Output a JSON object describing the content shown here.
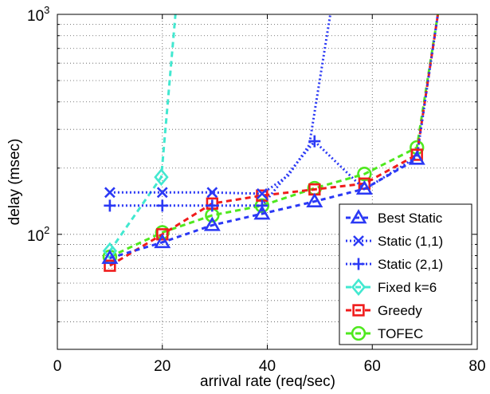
{
  "chart_data": {
    "type": "line",
    "xlabel": "arrival rate (req/sec)",
    "ylabel": "delay (msec)",
    "xlim": [
      0,
      80
    ],
    "ylim": [
      30,
      1000
    ],
    "yscale": "log",
    "grid": true,
    "legend_position": "bottom-right",
    "x_ticks": [
      0,
      20,
      40,
      60,
      80
    ],
    "x_tick_labels": [
      "0",
      "20",
      "40",
      "60",
      "80"
    ],
    "y_ticks": [
      100,
      1000
    ],
    "y_tick_labels": [
      {
        "base": "10",
        "exp": "2"
      },
      {
        "base": "10",
        "exp": "3"
      }
    ],
    "series": [
      {
        "name": "Best Static",
        "color": "#2b39f5",
        "marker": "triangle",
        "dash": "6,5",
        "x": [
          10,
          20,
          29.5,
          39,
          49,
          58.5,
          68.5
        ],
        "y": [
          78,
          92,
          110,
          124,
          141,
          161,
          220
        ]
      },
      {
        "name": "Static (1,1)",
        "color": "#2b39f5",
        "marker": "x",
        "dash": "2,3",
        "x": [
          10,
          20,
          29.5,
          39,
          44,
          48,
          52
        ],
        "y": [
          155,
          155,
          155,
          153,
          185,
          255,
          1000
        ],
        "marker_points": 4
      },
      {
        "name": "Static (2,1)",
        "color": "#2b39f5",
        "marker": "plus",
        "dash": "2,3",
        "x": [
          10,
          20,
          29.5,
          39,
          49,
          58.5,
          68.5,
          72.5
        ],
        "y": [
          135,
          135,
          135,
          135,
          265,
          160,
          225,
          1000
        ],
        "marker_points": 5
      },
      {
        "name": "Fixed k=6",
        "color": "#42e8d0",
        "marker": "diamond",
        "dash": "7,5",
        "x": [
          10,
          19.8,
          22.5
        ],
        "y": [
          84,
          182,
          1000
        ],
        "marker_points": 2
      },
      {
        "name": "Greedy",
        "color": "#f01c1c",
        "marker": "square",
        "dash": "7,5",
        "x": [
          10,
          20,
          29.5,
          39,
          49,
          58.5,
          68.5,
          72.5
        ],
        "y": [
          72,
          100,
          138,
          150,
          160,
          170,
          230,
          1000
        ],
        "marker_points": 7
      },
      {
        "name": "TOFEC",
        "color": "#4fe81f",
        "marker": "circle",
        "dash": "7,5",
        "x": [
          10,
          20,
          29.5,
          39,
          49,
          58.5,
          68.5,
          72.5
        ],
        "y": [
          79,
          102,
          122,
          135,
          162,
          188,
          248,
          1000
        ],
        "marker_points": 7
      }
    ]
  }
}
